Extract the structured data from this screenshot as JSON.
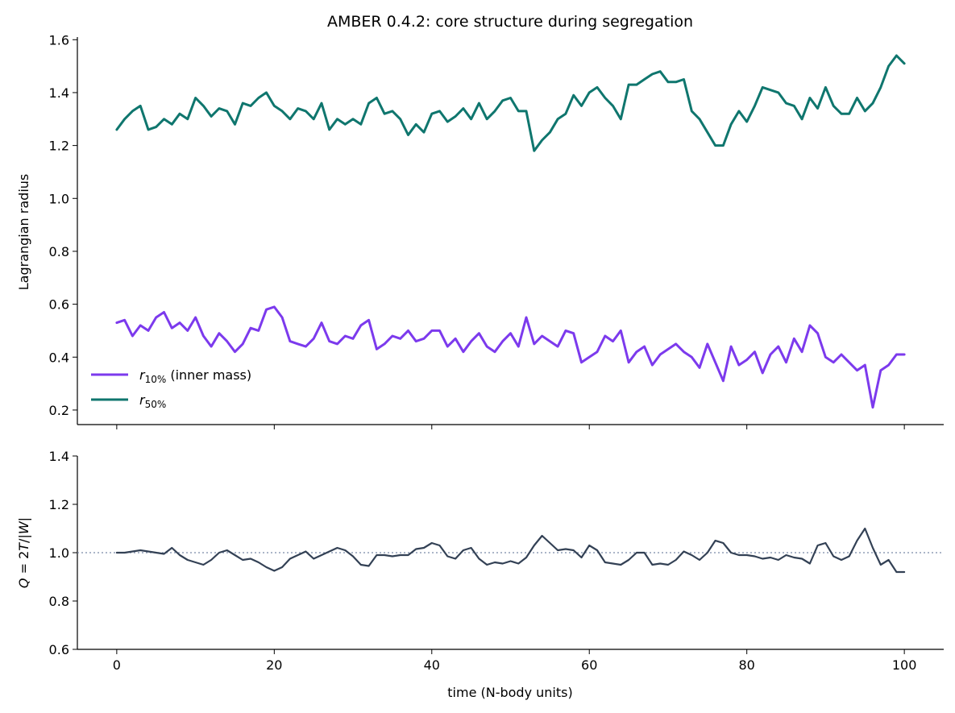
{
  "figure": {
    "title": "AMBER 0.4.2: core structure during segregation"
  },
  "chart_data": [
    {
      "type": "line",
      "panel": "top",
      "title": "AMBER 0.4.2: core structure during segregation",
      "xlabel": "",
      "ylabel": "Lagrangian radius",
      "xlim": [
        -5,
        105
      ],
      "ylim": [
        0.145,
        1.61
      ],
      "xticks": [
        0,
        20,
        40,
        60,
        80,
        100
      ],
      "yticks": [
        0.2,
        0.4,
        0.6,
        0.8,
        1.0,
        1.2,
        1.4,
        1.6
      ],
      "ytick_labels": [
        "0.2",
        "0.4",
        "0.6",
        "0.8",
        "1.0",
        "1.2",
        "1.4",
        "1.6"
      ],
      "grid": false,
      "legend_position": "lower-left",
      "colors": {
        "r10": "#7c3aed",
        "r50": "#0f766e"
      },
      "legend": [
        {
          "base": "r",
          "sub": "10%",
          "suffix": " (inner mass)",
          "color": "#7c3aed"
        },
        {
          "base": "r",
          "sub": "50%",
          "suffix": "",
          "color": "#0f766e"
        }
      ],
      "series": [
        {
          "name": "r10% (inner mass)",
          "color": "#7c3aed",
          "x": [
            0,
            1,
            2,
            3,
            4,
            5,
            6,
            7,
            8,
            9,
            10,
            11,
            12,
            13,
            14,
            15,
            16,
            17,
            18,
            19,
            20,
            21,
            22,
            23,
            24,
            25,
            26,
            27,
            28,
            29,
            30,
            31,
            32,
            33,
            34,
            35,
            36,
            37,
            38,
            39,
            40,
            41,
            42,
            43,
            44,
            45,
            46,
            47,
            48,
            49,
            50,
            51,
            52,
            53,
            54,
            55,
            56,
            57,
            58,
            59,
            60,
            61,
            62,
            63,
            64,
            65,
            66,
            67,
            68,
            69,
            70,
            71,
            72,
            73,
            74,
            75,
            76,
            77,
            78,
            79,
            80,
            81,
            82,
            83,
            84,
            85,
            86,
            87,
            88,
            89,
            90,
            91,
            92,
            93,
            94,
            95,
            96,
            97,
            98,
            99,
            100
          ],
          "values": [
            0.53,
            0.54,
            0.48,
            0.52,
            0.5,
            0.55,
            0.57,
            0.51,
            0.53,
            0.5,
            0.55,
            0.48,
            0.44,
            0.49,
            0.46,
            0.42,
            0.45,
            0.51,
            0.5,
            0.58,
            0.59,
            0.55,
            0.46,
            0.45,
            0.44,
            0.47,
            0.53,
            0.46,
            0.45,
            0.48,
            0.47,
            0.52,
            0.54,
            0.43,
            0.45,
            0.48,
            0.47,
            0.5,
            0.46,
            0.47,
            0.5,
            0.5,
            0.44,
            0.47,
            0.42,
            0.46,
            0.49,
            0.44,
            0.42,
            0.46,
            0.49,
            0.44,
            0.55,
            0.45,
            0.48,
            0.46,
            0.44,
            0.5,
            0.49,
            0.38,
            0.4,
            0.42,
            0.48,
            0.46,
            0.5,
            0.38,
            0.42,
            0.44,
            0.37,
            0.41,
            0.43,
            0.45,
            0.42,
            0.4,
            0.36,
            0.45,
            0.38,
            0.31,
            0.44,
            0.37,
            0.39,
            0.42,
            0.34,
            0.41,
            0.44,
            0.38,
            0.47,
            0.42,
            0.52,
            0.49,
            0.4,
            0.38,
            0.41,
            0.38,
            0.35,
            0.37,
            0.21,
            0.35,
            0.37,
            0.41,
            0.41
          ]
        },
        {
          "name": "r50%",
          "color": "#0f766e",
          "x": [
            0,
            1,
            2,
            3,
            4,
            5,
            6,
            7,
            8,
            9,
            10,
            11,
            12,
            13,
            14,
            15,
            16,
            17,
            18,
            19,
            20,
            21,
            22,
            23,
            24,
            25,
            26,
            27,
            28,
            29,
            30,
            31,
            32,
            33,
            34,
            35,
            36,
            37,
            38,
            39,
            40,
            41,
            42,
            43,
            44,
            45,
            46,
            47,
            48,
            49,
            50,
            51,
            52,
            53,
            54,
            55,
            56,
            57,
            58,
            59,
            60,
            61,
            62,
            63,
            64,
            65,
            66,
            67,
            68,
            69,
            70,
            71,
            72,
            73,
            74,
            75,
            76,
            77,
            78,
            79,
            80,
            81,
            82,
            83,
            84,
            85,
            86,
            87,
            88,
            89,
            90,
            91,
            92,
            93,
            94,
            95,
            96,
            97,
            98,
            99,
            100
          ],
          "values": [
            1.26,
            1.3,
            1.33,
            1.35,
            1.26,
            1.27,
            1.3,
            1.28,
            1.32,
            1.3,
            1.38,
            1.35,
            1.31,
            1.34,
            1.33,
            1.28,
            1.36,
            1.35,
            1.38,
            1.4,
            1.35,
            1.33,
            1.3,
            1.34,
            1.33,
            1.3,
            1.36,
            1.26,
            1.3,
            1.28,
            1.3,
            1.28,
            1.36,
            1.38,
            1.32,
            1.33,
            1.3,
            1.24,
            1.28,
            1.25,
            1.32,
            1.33,
            1.29,
            1.31,
            1.34,
            1.3,
            1.36,
            1.3,
            1.33,
            1.37,
            1.38,
            1.33,
            1.33,
            1.18,
            1.22,
            1.25,
            1.3,
            1.32,
            1.39,
            1.35,
            1.4,
            1.42,
            1.38,
            1.35,
            1.3,
            1.43,
            1.43,
            1.45,
            1.47,
            1.48,
            1.44,
            1.44,
            1.45,
            1.33,
            1.3,
            1.25,
            1.2,
            1.2,
            1.28,
            1.33,
            1.29,
            1.35,
            1.42,
            1.41,
            1.4,
            1.36,
            1.35,
            1.3,
            1.38,
            1.34,
            1.42,
            1.35,
            1.32,
            1.32,
            1.38,
            1.33,
            1.36,
            1.42,
            1.5,
            1.54,
            1.51
          ]
        }
      ]
    },
    {
      "type": "line",
      "panel": "bottom",
      "xlabel": "time (N-body units)",
      "ylabel_parts": [
        "Q",
        " = 2",
        "T",
        "/|",
        "W",
        "|"
      ],
      "xlim": [
        -5,
        105
      ],
      "ylim": [
        0.6,
        1.4
      ],
      "xticks": [
        0,
        20,
        40,
        60,
        80,
        100
      ],
      "xtick_labels": [
        "0",
        "20",
        "40",
        "60",
        "80",
        "100"
      ],
      "yticks": [
        0.6,
        0.8,
        1.0,
        1.2,
        1.4
      ],
      "ytick_labels": [
        "0.6",
        "0.8",
        "1.0",
        "1.2",
        "1.4"
      ],
      "grid": false,
      "reference_line": {
        "y": 1.0,
        "style": "dotted",
        "color": "#7b8aa8"
      },
      "series": [
        {
          "color": "#334155",
          "x": [
            0,
            1,
            2,
            3,
            4,
            5,
            6,
            7,
            8,
            9,
            10,
            11,
            12,
            13,
            14,
            15,
            16,
            17,
            18,
            19,
            20,
            21,
            22,
            23,
            24,
            25,
            26,
            27,
            28,
            29,
            30,
            31,
            32,
            33,
            34,
            35,
            36,
            37,
            38,
            39,
            40,
            41,
            42,
            43,
            44,
            45,
            46,
            47,
            48,
            49,
            50,
            51,
            52,
            53,
            54,
            55,
            56,
            57,
            58,
            59,
            60,
            61,
            62,
            63,
            64,
            65,
            66,
            67,
            68,
            69,
            70,
            71,
            72,
            73,
            74,
            75,
            76,
            77,
            78,
            79,
            80,
            81,
            82,
            83,
            84,
            85,
            86,
            87,
            88,
            89,
            90,
            91,
            92,
            93,
            94,
            95,
            96,
            97,
            98,
            99,
            100
          ],
          "values": [
            1.0,
            1.0,
            1.005,
            1.01,
            1.005,
            1.0,
            0.995,
            1.02,
            0.99,
            0.97,
            0.96,
            0.95,
            0.97,
            1.0,
            1.01,
            0.99,
            0.97,
            0.975,
            0.96,
            0.94,
            0.925,
            0.94,
            0.975,
            0.99,
            1.005,
            0.975,
            0.99,
            1.005,
            1.02,
            1.01,
            0.985,
            0.95,
            0.945,
            0.99,
            0.99,
            0.985,
            0.99,
            0.99,
            1.015,
            1.02,
            1.04,
            1.03,
            0.985,
            0.975,
            1.01,
            1.02,
            0.975,
            0.95,
            0.96,
            0.955,
            0.965,
            0.955,
            0.98,
            1.03,
            1.07,
            1.04,
            1.01,
            1.015,
            1.01,
            0.98,
            1.03,
            1.01,
            0.96,
            0.955,
            0.95,
            0.97,
            1.0,
            1.0,
            0.95,
            0.955,
            0.95,
            0.97,
            1.005,
            0.99,
            0.97,
            1.0,
            1.05,
            1.04,
            1.0,
            0.99,
            0.99,
            0.985,
            0.975,
            0.98,
            0.97,
            0.99,
            0.98,
            0.975,
            0.955,
            1.03,
            1.04,
            0.985,
            0.97,
            0.985,
            1.05,
            1.1,
            1.02,
            0.95,
            0.97,
            0.92,
            0.92
          ]
        }
      ]
    }
  ]
}
